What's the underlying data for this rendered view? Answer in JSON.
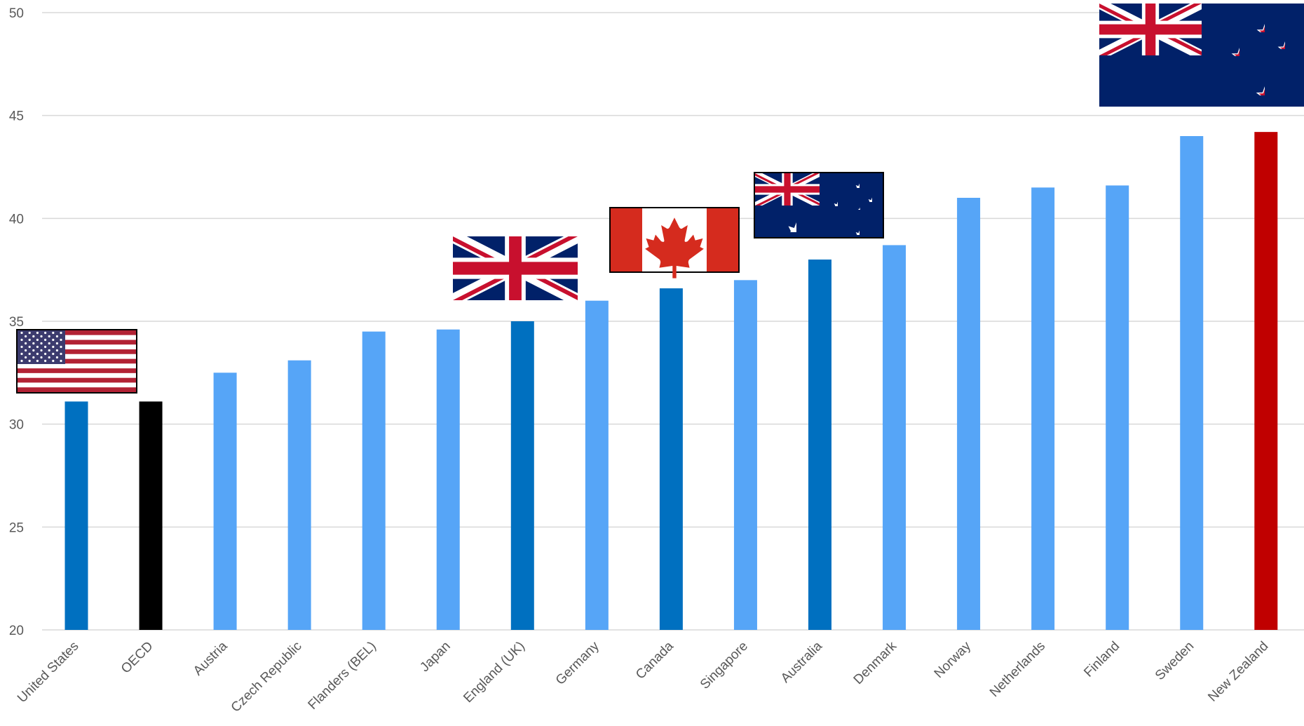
{
  "chart_data": {
    "type": "bar",
    "title": "",
    "xlabel": "",
    "ylabel": "",
    "ylim": [
      20,
      50
    ],
    "yticks": [
      20,
      25,
      30,
      35,
      40,
      45,
      50
    ],
    "grid": true,
    "categories": [
      "United States",
      "OECD",
      "Austria",
      "Czech Republic",
      "Flanders (BEL)",
      "Japan",
      "England (UK)",
      "Germany",
      "Canada",
      "Singapore",
      "Australia",
      "Denmark",
      "Norway",
      "Netherlands",
      "Finland",
      "Sweden",
      "New Zealand"
    ],
    "values": [
      31.1,
      31.1,
      32.5,
      33.1,
      34.5,
      34.6,
      35.0,
      36.0,
      36.6,
      37.0,
      38.0,
      38.7,
      41.0,
      41.5,
      41.6,
      44.0,
      44.2
    ],
    "bar_colors": [
      "#0070c0",
      "#000000",
      "#56a5f7",
      "#56a5f7",
      "#56a5f7",
      "#56a5f7",
      "#0070c0",
      "#56a5f7",
      "#0070c0",
      "#56a5f7",
      "#0070c0",
      "#56a5f7",
      "#56a5f7",
      "#56a5f7",
      "#56a5f7",
      "#56a5f7",
      "#c00000"
    ],
    "flags": [
      {
        "category": "United States",
        "icon": "usa-flag-icon"
      },
      {
        "category": "England (UK)",
        "icon": "uk-flag-icon"
      },
      {
        "category": "Canada",
        "icon": "canada-flag-icon"
      },
      {
        "category": "Australia",
        "icon": "australia-flag-icon"
      },
      {
        "category": "New Zealand",
        "icon": "new-zealand-flag-icon"
      }
    ]
  }
}
